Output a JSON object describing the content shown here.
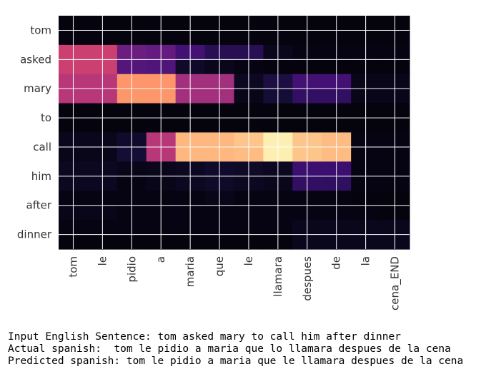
{
  "chart_data": {
    "type": "heatmap",
    "x_tokens": [
      "tom",
      "le",
      "pidio",
      "a",
      "maria",
      "que",
      "le",
      "llamara",
      "despues",
      "de",
      "la",
      "cena_END"
    ],
    "y_tokens": [
      "tom",
      "asked",
      "mary",
      "to",
      "call",
      "him",
      "after",
      "dinner"
    ],
    "grid": true,
    "colormap": "magma",
    "cells": [
      [
        0.02,
        0.02,
        0.02,
        0.02,
        0.02,
        0.02,
        0.02,
        0.02,
        0.02,
        0.02,
        0.02,
        0.02
      ],
      [
        0.02,
        0.02,
        0.02,
        0.02,
        0.02,
        0.02,
        0.02,
        0.02,
        0.02,
        0.02,
        0.02,
        0.02
      ],
      [
        0.55,
        0.55,
        0.32,
        0.3,
        0.22,
        0.15,
        0.15,
        0.05,
        0.03,
        0.03,
        0.03,
        0.03
      ],
      [
        0.55,
        0.55,
        0.26,
        0.25,
        0.07,
        0.05,
        0.03,
        0.02,
        0.02,
        0.02,
        0.02,
        0.02
      ],
      [
        0.5,
        0.5,
        0.78,
        0.78,
        0.45,
        0.45,
        0.06,
        0.12,
        0.22,
        0.22,
        0.04,
        0.04
      ],
      [
        0.5,
        0.5,
        0.78,
        0.78,
        0.45,
        0.45,
        0.04,
        0.1,
        0.18,
        0.18,
        0.04,
        0.04
      ],
      [
        0.02,
        0.02,
        0.02,
        0.02,
        0.02,
        0.02,
        0.02,
        0.02,
        0.02,
        0.02,
        0.02,
        0.02
      ],
      [
        0.02,
        0.02,
        0.02,
        0.02,
        0.02,
        0.02,
        0.02,
        0.02,
        0.02,
        0.02,
        0.02,
        0.02
      ],
      [
        0.05,
        0.05,
        0.08,
        0.5,
        0.85,
        0.85,
        0.88,
        0.97,
        0.88,
        0.86,
        0.03,
        0.03
      ],
      [
        0.04,
        0.04,
        0.1,
        0.5,
        0.85,
        0.85,
        0.86,
        0.97,
        0.88,
        0.86,
        0.03,
        0.03
      ],
      [
        0.06,
        0.06,
        0.04,
        0.05,
        0.06,
        0.08,
        0.07,
        0.06,
        0.2,
        0.2,
        0.03,
        0.03
      ],
      [
        0.06,
        0.06,
        0.03,
        0.04,
        0.06,
        0.07,
        0.06,
        0.05,
        0.18,
        0.17,
        0.03,
        0.03
      ],
      [
        0.03,
        0.03,
        0.03,
        0.03,
        0.03,
        0.04,
        0.03,
        0.03,
        0.03,
        0.03,
        0.02,
        0.02
      ],
      [
        0.04,
        0.04,
        0.03,
        0.03,
        0.03,
        0.03,
        0.03,
        0.03,
        0.03,
        0.03,
        0.03,
        0.02
      ],
      [
        0.03,
        0.03,
        0.03,
        0.03,
        0.03,
        0.03,
        0.03,
        0.03,
        0.05,
        0.05,
        0.05,
        0.05
      ],
      [
        0.02,
        0.02,
        0.02,
        0.02,
        0.02,
        0.02,
        0.02,
        0.02,
        0.05,
        0.05,
        0.05,
        0.05
      ]
    ]
  },
  "output": {
    "input_line": "Input English Sentence: tom asked mary to call him after dinner",
    "actual_line": "Actual spanish:  tom le pidio a maria que lo llamara despues de la cena",
    "predicted_line": "Predicted spanish: tom le pidio a maria que le llamara despues de la cena"
  }
}
